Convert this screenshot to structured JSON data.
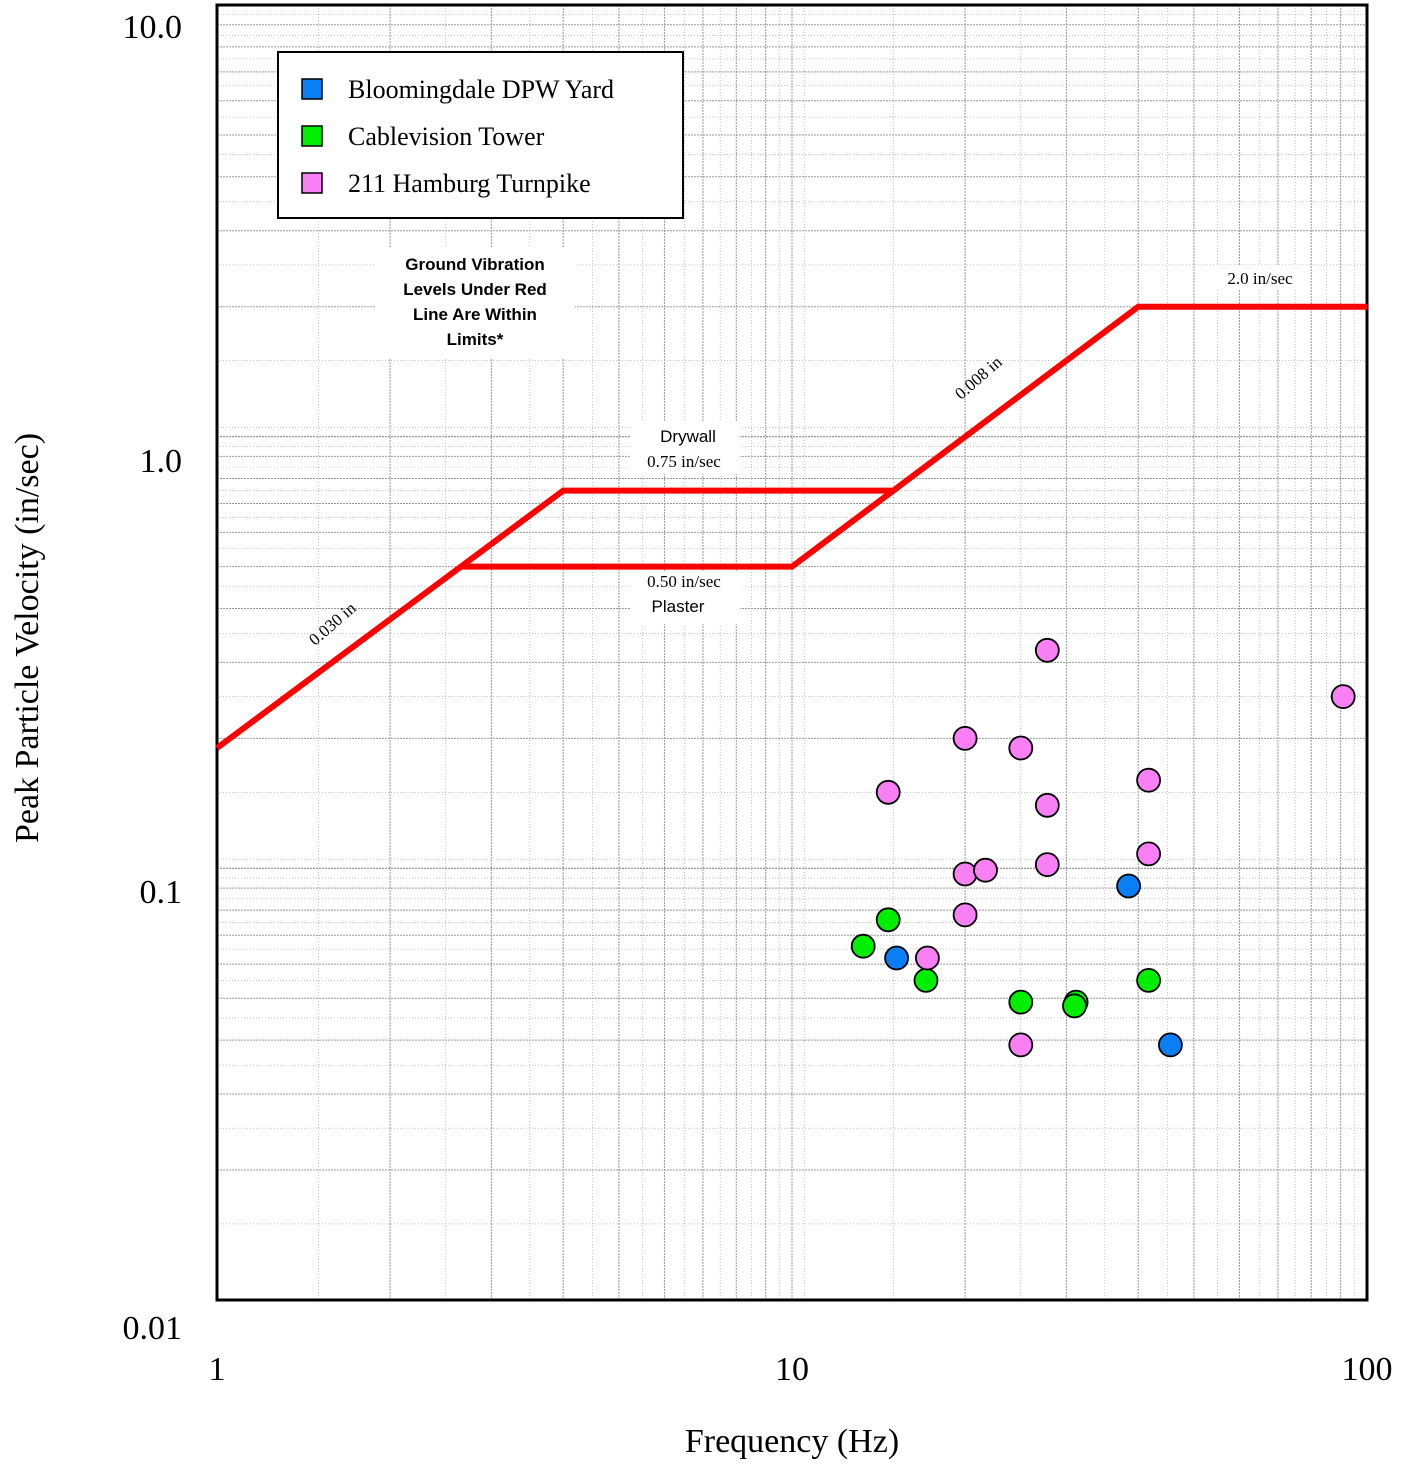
{
  "chart_data": {
    "type": "scatter",
    "x_scale": "log",
    "y_scale": "log",
    "xlim": [
      1,
      100
    ],
    "ylim": [
      0.01,
      10
    ],
    "xlabel": "Frequency (Hz)",
    "ylabel": "Peak Particle Velocity (in/sec)",
    "x_tick_labels": [
      "1",
      "10",
      "100"
    ],
    "y_tick_labels": [
      "10.0",
      "1.0",
      "0.1",
      "0.01"
    ],
    "grid": true,
    "legend_position": "top-left",
    "series": [
      {
        "name": "Bloomingdale DPW Yard",
        "color": "#0a7ff5",
        "points": [
          [
            15.2,
            0.062
          ],
          [
            38.5,
            0.091
          ],
          [
            45.5,
            0.039
          ]
        ]
      },
      {
        "name": "Cablevision Tower",
        "color": "#00ee00",
        "points": [
          [
            13.3,
            0.066
          ],
          [
            14.7,
            0.076
          ],
          [
            17.1,
            0.055
          ],
          [
            25.0,
            0.049
          ],
          [
            31.2,
            0.049
          ],
          [
            31.0,
            0.048
          ],
          [
            41.7,
            0.055
          ]
        ]
      },
      {
        "name": "211 Hamburg Turnpike",
        "color": "#f97ff5",
        "points": [
          [
            27.8,
            0.32
          ],
          [
            90.9,
            0.25
          ],
          [
            20.0,
            0.2
          ],
          [
            25.0,
            0.19
          ],
          [
            14.7,
            0.15
          ],
          [
            41.7,
            0.16
          ],
          [
            27.8,
            0.14
          ],
          [
            20.0,
            0.097
          ],
          [
            21.7,
            0.099
          ],
          [
            27.8,
            0.102
          ],
          [
            41.7,
            0.108
          ],
          [
            20.0,
            0.078
          ],
          [
            17.2,
            0.062
          ],
          [
            25.0,
            0.039
          ]
        ]
      }
    ],
    "limit_line": {
      "color": "#ff0000",
      "drywall": [
        [
          1,
          0.19
        ],
        [
          4.0,
          0.75
        ],
        [
          15.0,
          0.75
        ],
        [
          40,
          2.0
        ],
        [
          100,
          2.0
        ]
      ],
      "plaster": [
        [
          2.65,
          0.5
        ],
        [
          10,
          0.5
        ],
        [
          15.0,
          0.75
        ]
      ]
    },
    "annotations": {
      "region_note": [
        "Ground Vibration",
        "Levels Under Red",
        "Line Are Within",
        "Limits*"
      ],
      "drywall_label": "Drywall",
      "drywall_value": "0.75 in/sec",
      "plaster_value": "0.50 in/sec",
      "plaster_label": "Plaster",
      "displacement_low": "0.030 in",
      "displacement_high": "0.008 in",
      "max_velocity": "2.0 in/sec"
    }
  }
}
